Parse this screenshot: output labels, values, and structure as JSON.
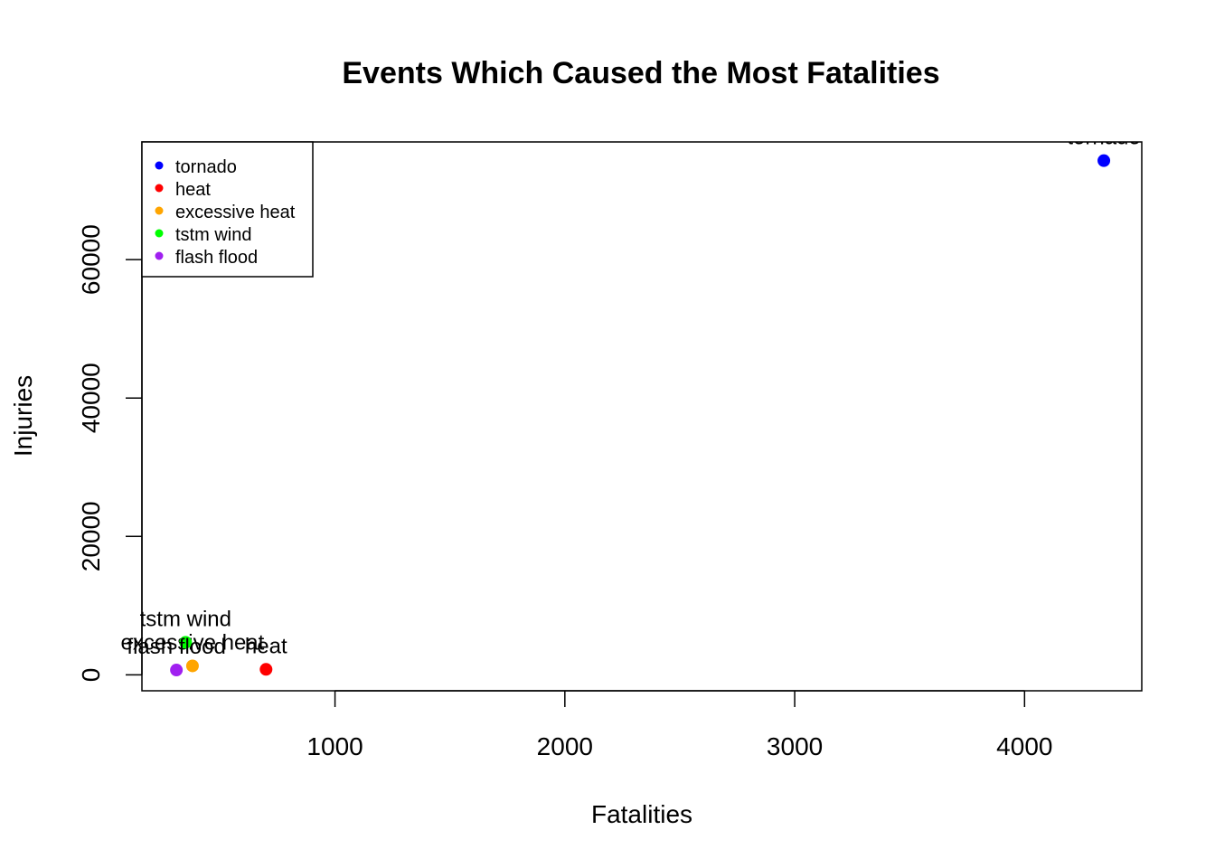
{
  "chart_data": {
    "type": "scatter",
    "title": "Events Which Caused the Most Fatalities",
    "xlabel": "Fatalities",
    "ylabel": "Injuries",
    "xlim": [
      160,
      4510
    ],
    "ylim": [
      -2300,
      77000
    ],
    "x_ticks": [
      1000,
      2000,
      3000,
      4000
    ],
    "y_ticks": [
      0,
      20000,
      40000,
      60000
    ],
    "grid": false,
    "legend_position": "top-left",
    "points": [
      {
        "label": "tornado",
        "x": 4345,
        "y": 74300,
        "color": "#0000FF"
      },
      {
        "label": "heat",
        "x": 700,
        "y": 800,
        "color": "#FF0000"
      },
      {
        "label": "excessive heat",
        "x": 380,
        "y": 1300,
        "color": "#FFA500"
      },
      {
        "label": "tstm wind",
        "x": 350,
        "y": 4700,
        "color": "#00FF00"
      },
      {
        "label": "flash flood",
        "x": 310,
        "y": 700,
        "color": "#A020F0"
      }
    ]
  }
}
